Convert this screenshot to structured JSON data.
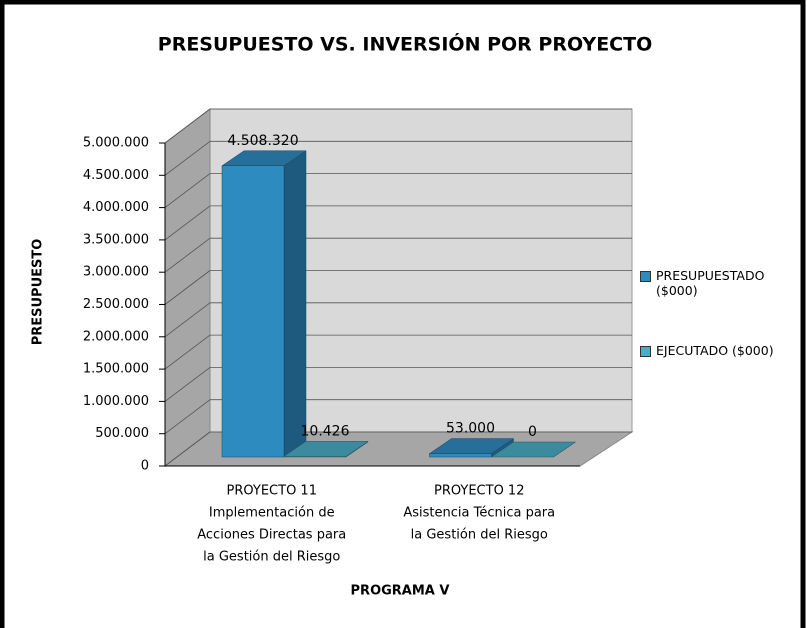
{
  "chart_data": {
    "type": "bar3d",
    "title": "PRESUPUESTO VS. INVERSIÓN POR PROYECTO",
    "y_label": "PRESUPUESTO",
    "x_label": "PROGRAMA V",
    "categories": [
      [
        "PROYECTO 11",
        "Implementación de",
        "Acciones Directas para",
        "la Gestión del Riesgo"
      ],
      [
        "PROYECTO 12",
        "Asistencia Técnica para",
        "la Gestión del Riesgo"
      ]
    ],
    "series": [
      {
        "name": "PRESUPUESTADO ($000)",
        "color": "#2e8bc0",
        "values": [
          4508320,
          53000
        ],
        "value_labels": [
          "4.508.320",
          "53.000"
        ]
      },
      {
        "name": "EJECUTADO ($000)",
        "color": "#4bacc6",
        "values": [
          10426,
          0
        ],
        "value_labels": [
          "10.426",
          "0"
        ]
      }
    ],
    "ylim": [
      0,
      5000000
    ],
    "yticks": [
      0,
      {
        "value": 500000,
        "label": "500.000"
      },
      {
        "value": 1000000,
        "label": "1.000.000"
      },
      {
        "value": 1500000,
        "label": "1.500.000"
      },
      {
        "value": 2000000,
        "label": "2.000.000"
      },
      {
        "value": 2500000,
        "label": "2.500.000"
      },
      {
        "value": 3000000,
        "label": "3.000.000"
      },
      {
        "value": 3500000,
        "label": "3.500.000"
      },
      {
        "value": 4000000,
        "label": "4.000.000"
      },
      {
        "value": 4500000,
        "label": "4.500.000"
      },
      {
        "value": 5000000,
        "label": "5.000.000"
      }
    ],
    "grid": true,
    "legend": "right"
  }
}
